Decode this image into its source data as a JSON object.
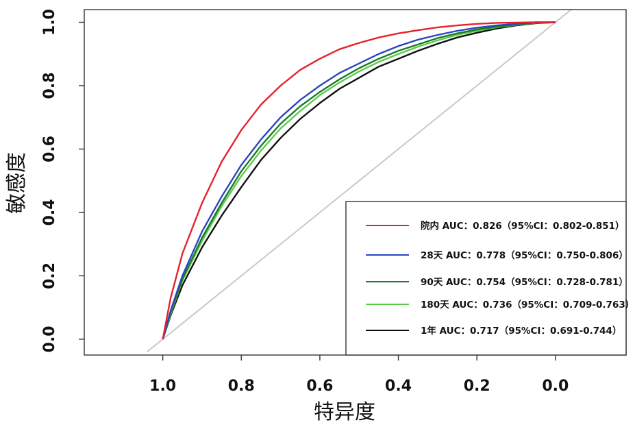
{
  "chart_data": {
    "type": "line",
    "xlabel": "特异度",
    "ylabel": "敏感度",
    "x_axis": {
      "range": [
        1.2,
        -0.18
      ],
      "ticks": [
        1.0,
        0.8,
        0.6,
        0.4,
        0.2,
        0.0
      ],
      "tick_labels": [
        "1.0",
        "0.8",
        "0.6",
        "0.4",
        "0.2",
        "0.0"
      ]
    },
    "y_axis": {
      "range": [
        -0.05,
        1.04
      ],
      "ticks": [
        0.0,
        0.2,
        0.4,
        0.6,
        0.8,
        1.0
      ],
      "tick_labels": [
        "0.0",
        "0.2",
        "0.4",
        "0.6",
        "0.8",
        "1.0"
      ]
    },
    "reference_line": {
      "points": [
        [
          1.04,
          -0.04
        ],
        [
          -0.04,
          1.04
        ]
      ],
      "color": "#c8c8c8"
    },
    "legend_position": "bottom-right",
    "series": [
      {
        "name": "院内",
        "label": "院内 AUC：0.826（95%CI：0.802-0.851）",
        "auc": 0.826,
        "ci": [
          0.802,
          0.851
        ],
        "color": "#e8202a",
        "points": [
          [
            1.0,
            0.0
          ],
          [
            0.98,
            0.13
          ],
          [
            0.95,
            0.27
          ],
          [
            0.9,
            0.43
          ],
          [
            0.85,
            0.56
          ],
          [
            0.8,
            0.66
          ],
          [
            0.75,
            0.74
          ],
          [
            0.7,
            0.8
          ],
          [
            0.65,
            0.85
          ],
          [
            0.6,
            0.885
          ],
          [
            0.55,
            0.915
          ],
          [
            0.5,
            0.935
          ],
          [
            0.45,
            0.952
          ],
          [
            0.4,
            0.965
          ],
          [
            0.35,
            0.975
          ],
          [
            0.3,
            0.984
          ],
          [
            0.25,
            0.99
          ],
          [
            0.2,
            0.995
          ],
          [
            0.15,
            0.998
          ],
          [
            0.1,
            0.999
          ],
          [
            0.05,
            1.0
          ],
          [
            0.0,
            1.0
          ]
        ]
      },
      {
        "name": "28天",
        "label": "28天 AUC：0.778（95%CI：0.750-0.806）",
        "auc": 0.778,
        "ci": [
          0.75,
          0.806
        ],
        "color": "#2a45c0",
        "points": [
          [
            1.0,
            0.0
          ],
          [
            0.98,
            0.09
          ],
          [
            0.95,
            0.2
          ],
          [
            0.9,
            0.34
          ],
          [
            0.85,
            0.45
          ],
          [
            0.8,
            0.55
          ],
          [
            0.75,
            0.63
          ],
          [
            0.7,
            0.7
          ],
          [
            0.65,
            0.755
          ],
          [
            0.6,
            0.8
          ],
          [
            0.55,
            0.84
          ],
          [
            0.5,
            0.87
          ],
          [
            0.45,
            0.9
          ],
          [
            0.4,
            0.925
          ],
          [
            0.35,
            0.945
          ],
          [
            0.3,
            0.96
          ],
          [
            0.25,
            0.973
          ],
          [
            0.2,
            0.983
          ],
          [
            0.15,
            0.99
          ],
          [
            0.1,
            0.995
          ],
          [
            0.05,
            1.0
          ],
          [
            0.0,
            1.0
          ]
        ]
      },
      {
        "name": "90天",
        "label": "90天 AUC：0.754（95%CI：0.728-0.781）",
        "auc": 0.754,
        "ci": [
          0.728,
          0.781
        ],
        "color": "#1a7a2a",
        "points": [
          [
            1.0,
            0.0
          ],
          [
            0.98,
            0.085
          ],
          [
            0.95,
            0.19
          ],
          [
            0.9,
            0.32
          ],
          [
            0.85,
            0.43
          ],
          [
            0.8,
            0.53
          ],
          [
            0.75,
            0.61
          ],
          [
            0.7,
            0.68
          ],
          [
            0.65,
            0.735
          ],
          [
            0.6,
            0.78
          ],
          [
            0.55,
            0.82
          ],
          [
            0.5,
            0.855
          ],
          [
            0.45,
            0.885
          ],
          [
            0.4,
            0.91
          ],
          [
            0.35,
            0.93
          ],
          [
            0.3,
            0.95
          ],
          [
            0.25,
            0.965
          ],
          [
            0.2,
            0.977
          ],
          [
            0.15,
            0.986
          ],
          [
            0.1,
            0.993
          ],
          [
            0.05,
            0.999
          ],
          [
            0.0,
            1.0
          ]
        ]
      },
      {
        "name": "180天",
        "label": "180天 AUC：0.736（95%CI：0.709-0.763）",
        "auc": 0.736,
        "ci": [
          0.709,
          0.763
        ],
        "color": "#5ccc4a",
        "points": [
          [
            1.0,
            0.0
          ],
          [
            0.98,
            0.08
          ],
          [
            0.95,
            0.185
          ],
          [
            0.9,
            0.31
          ],
          [
            0.85,
            0.42
          ],
          [
            0.8,
            0.515
          ],
          [
            0.75,
            0.595
          ],
          [
            0.7,
            0.665
          ],
          [
            0.65,
            0.72
          ],
          [
            0.6,
            0.77
          ],
          [
            0.55,
            0.81
          ],
          [
            0.5,
            0.845
          ],
          [
            0.45,
            0.875
          ],
          [
            0.4,
            0.9
          ],
          [
            0.35,
            0.923
          ],
          [
            0.3,
            0.943
          ],
          [
            0.25,
            0.96
          ],
          [
            0.2,
            0.973
          ],
          [
            0.15,
            0.984
          ],
          [
            0.1,
            0.992
          ],
          [
            0.05,
            0.998
          ],
          [
            0.0,
            1.0
          ]
        ]
      },
      {
        "name": "1年",
        "label": "1年 AUC：0.717（95%CI：0.691-0.744）",
        "auc": 0.717,
        "ci": [
          0.691,
          0.744
        ],
        "color": "#111111",
        "points": [
          [
            1.0,
            0.0
          ],
          [
            0.98,
            0.075
          ],
          [
            0.95,
            0.17
          ],
          [
            0.9,
            0.29
          ],
          [
            0.85,
            0.39
          ],
          [
            0.8,
            0.48
          ],
          [
            0.75,
            0.565
          ],
          [
            0.7,
            0.635
          ],
          [
            0.65,
            0.695
          ],
          [
            0.6,
            0.745
          ],
          [
            0.55,
            0.79
          ],
          [
            0.5,
            0.825
          ],
          [
            0.45,
            0.86
          ],
          [
            0.4,
            0.885
          ],
          [
            0.35,
            0.91
          ],
          [
            0.3,
            0.932
          ],
          [
            0.25,
            0.952
          ],
          [
            0.2,
            0.967
          ],
          [
            0.15,
            0.98
          ],
          [
            0.1,
            0.99
          ],
          [
            0.05,
            0.997
          ],
          [
            0.0,
            1.0
          ]
        ]
      }
    ]
  }
}
